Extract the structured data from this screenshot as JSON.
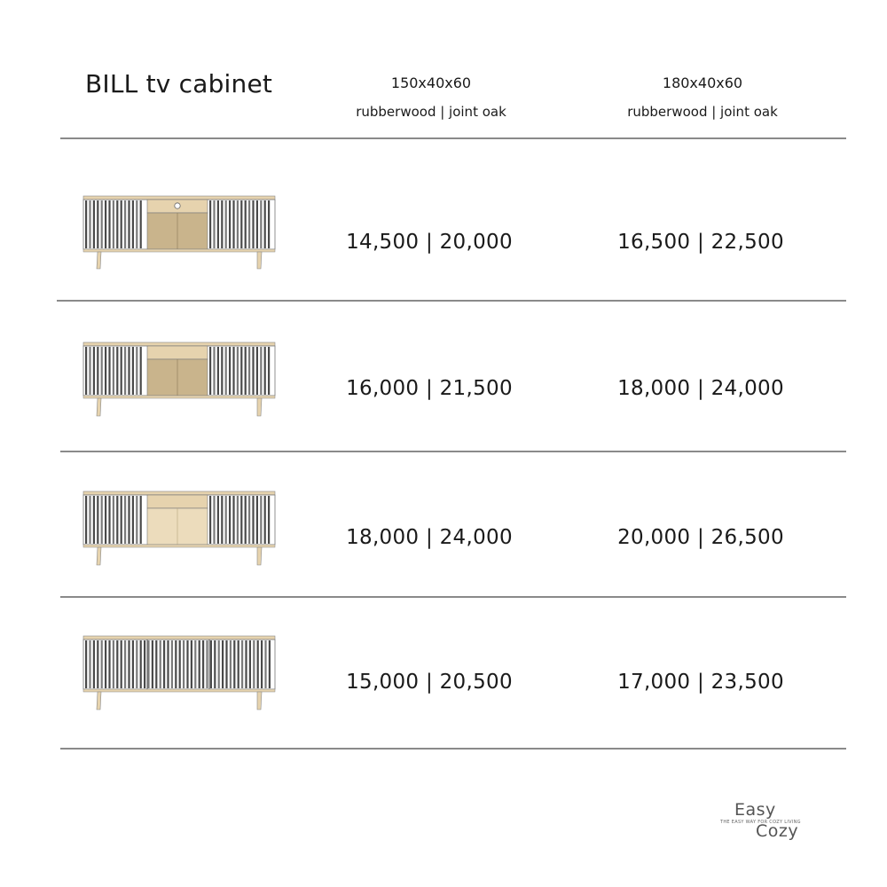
{
  "title": "BILL tv cabinet",
  "columns": [
    {
      "dimensions": "150x40x60",
      "materials": "rubberwood | joint oak"
    },
    {
      "dimensions": "180x40x60",
      "materials": "rubberwood | joint oak"
    }
  ],
  "rows": [
    {
      "variant": "slatted-doors-open-center-cable-hole",
      "price_150": "14,500 | 20,000",
      "price_180": "16,500 | 22,500"
    },
    {
      "variant": "slatted-doors-drawer-and-oak-door",
      "price_150": "16,000 | 21,500",
      "price_180": "18,000 | 24,000"
    },
    {
      "variant": "slatted-doors-drawer-and-light-door",
      "price_150": "18,000 | 24,000",
      "price_180": "20,000 | 26,500"
    },
    {
      "variant": "all-slatted-doors",
      "price_150": "15,000 | 20,500",
      "price_180": "17,000 | 23,500"
    }
  ],
  "logo": {
    "line1": "Easy",
    "line2": "Cozy",
    "tagline": "THE EASY WAY FOR COZY LIVING"
  },
  "colors": {
    "oak_light": "#e6d3ae",
    "oak_dark": "#c9b48c",
    "slat_dark": "#4a4a4a",
    "slat_light": "#f2f2f2",
    "rule": "#8a8a8a"
  }
}
